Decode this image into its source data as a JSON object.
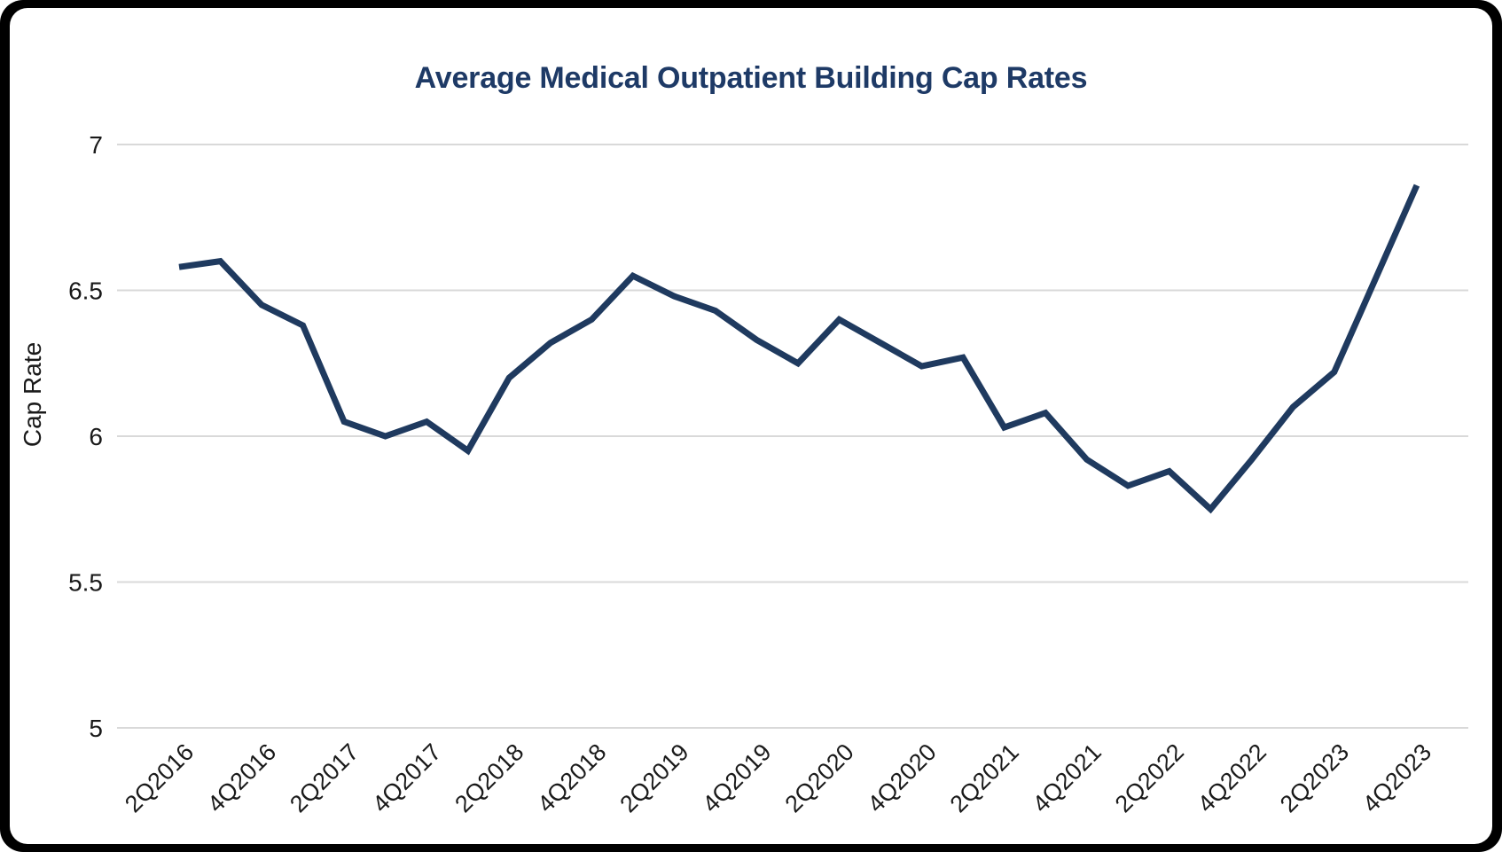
{
  "chart_data": {
    "type": "line",
    "title": "Average Medical Outpatient Building Cap Rates",
    "xlabel": "",
    "ylabel": "Cap Rate",
    "x": [
      "2Q2016",
      "3Q2016",
      "4Q2016",
      "1Q2017",
      "2Q2017",
      "3Q2017",
      "4Q2017",
      "1Q2018",
      "2Q2018",
      "3Q2018",
      "4Q2018",
      "1Q2019",
      "2Q2019",
      "3Q2019",
      "4Q2019",
      "1Q2020",
      "2Q2020",
      "3Q2020",
      "4Q2020",
      "1Q2021",
      "2Q2021",
      "3Q2021",
      "4Q2021",
      "1Q2022",
      "2Q2022",
      "3Q2022",
      "4Q2022",
      "1Q2023",
      "2Q2023",
      "3Q2023",
      "4Q2023"
    ],
    "values": [
      6.58,
      6.6,
      6.45,
      6.38,
      6.05,
      6.0,
      6.05,
      5.95,
      6.2,
      6.32,
      6.4,
      6.55,
      6.48,
      6.43,
      6.33,
      6.25,
      6.4,
      6.32,
      6.24,
      6.27,
      6.03,
      6.08,
      5.92,
      5.83,
      5.88,
      5.75,
      5.92,
      6.1,
      6.22,
      6.54,
      6.86
    ],
    "x_tick_labels": [
      "2Q2016",
      "4Q2016",
      "2Q2017",
      "4Q2017",
      "2Q2018",
      "4Q2018",
      "2Q2019",
      "4Q2019",
      "2Q2020",
      "4Q2020",
      "2Q2021",
      "4Q2021",
      "2Q2022",
      "4Q2022",
      "2Q2023",
      "4Q2023"
    ],
    "x_tick_every": 2,
    "y_ticks": [
      "7",
      "6.5",
      "6",
      "5.5",
      "5"
    ],
    "ylim": [
      5,
      7
    ],
    "grid": "horizontal",
    "legend": "none",
    "line_color": "#1f3a5f",
    "grid_color": "#d9d9d9",
    "tick_color": "#1a1a1a",
    "title_color": "#1e3a66",
    "background": "#ffffff"
  }
}
